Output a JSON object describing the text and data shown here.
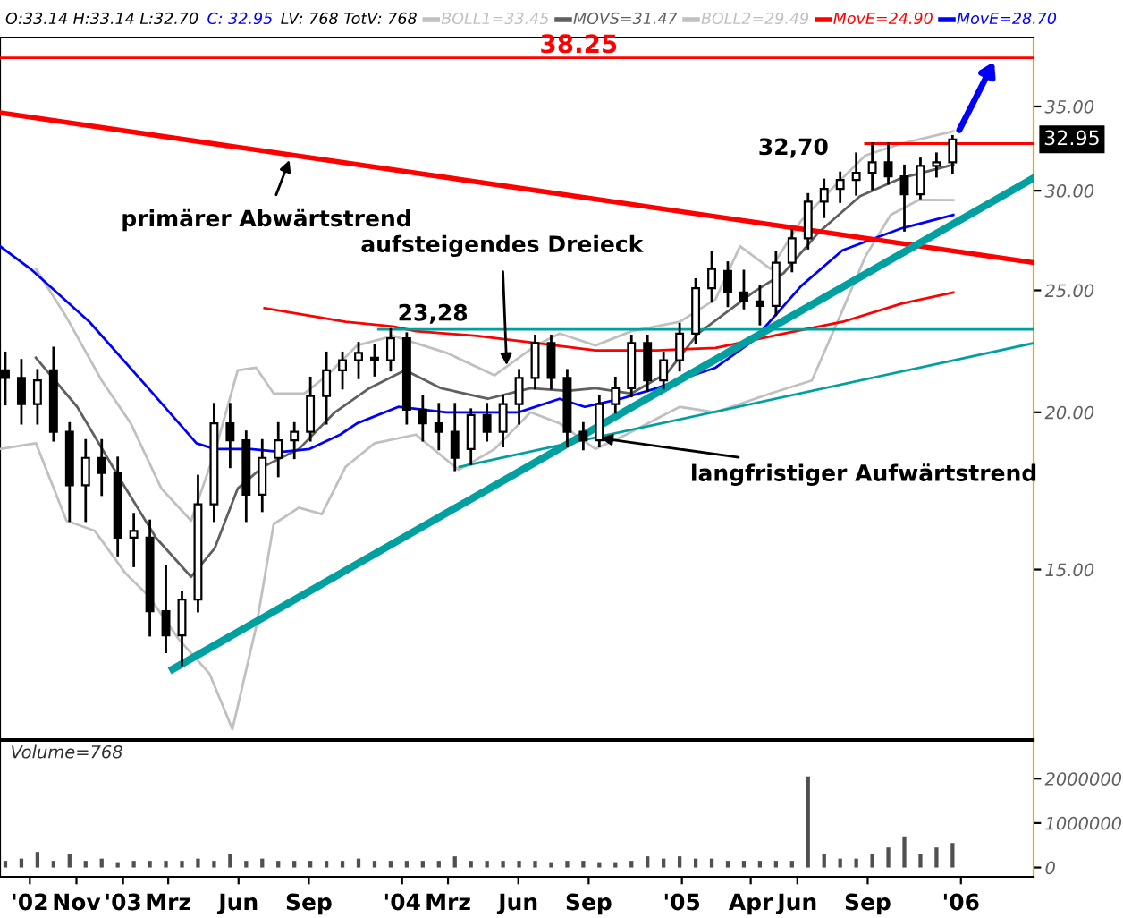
{
  "chart_data": [
    {
      "type": "candlestick",
      "x": [
        "2002-07-31",
        "2002-08-21",
        "2002-09-11",
        "2002-10-02",
        "2002-10-23",
        "2002-11-13",
        "2002-12-04",
        "2002-12-25",
        "2003-01-15",
        "2003-02-05",
        "2003-02-26",
        "2003-03-19",
        "2003-04-09",
        "2003-04-30",
        "2003-05-21",
        "2003-06-11",
        "2003-07-02",
        "2003-07-23",
        "2003-08-13",
        "2003-09-03",
        "2003-09-24",
        "2003-10-15",
        "2003-11-05",
        "2003-11-26",
        "2003-12-17",
        "2004-01-07",
        "2004-01-28",
        "2004-02-18",
        "2004-03-10",
        "2004-03-31",
        "2004-04-21",
        "2004-05-12",
        "2004-06-02",
        "2004-06-23",
        "2004-07-14",
        "2004-08-04",
        "2004-08-25",
        "2004-09-15",
        "2004-10-06",
        "2004-10-27",
        "2004-11-17",
        "2004-12-08",
        "2004-12-29",
        "2005-01-19",
        "2005-02-09",
        "2005-03-02",
        "2005-03-23",
        "2005-04-13",
        "2005-05-04",
        "2005-05-25",
        "2005-06-15",
        "2005-07-06",
        "2005-07-27",
        "2005-08-17",
        "2005-09-07",
        "2005-09-28",
        "2005-10-19",
        "2005-11-09",
        "2005-11-30",
        "2005-12-21"
      ],
      "ohlc": [
        [
          21.6,
          22.3,
          20.3,
          21.3
        ],
        [
          21.3,
          22.0,
          19.6,
          20.3
        ],
        [
          20.3,
          21.6,
          19.6,
          21.2
        ],
        [
          21.6,
          22.5,
          19.0,
          19.3
        ],
        [
          19.3,
          19.6,
          16.4,
          17.5
        ],
        [
          17.5,
          19.0,
          16.4,
          18.4
        ],
        [
          18.4,
          19.0,
          17.2,
          17.9
        ],
        [
          17.9,
          18.4,
          15.4,
          15.9
        ],
        [
          15.9,
          16.6,
          15.1,
          16.1
        ],
        [
          15.9,
          16.4,
          13.3,
          13.9
        ],
        [
          13.9,
          15.1,
          12.9,
          13.3
        ],
        [
          13.3,
          14.4,
          12.6,
          14.2
        ],
        [
          14.2,
          17.8,
          13.9,
          16.9
        ],
        [
          16.9,
          20.3,
          16.4,
          19.6
        ],
        [
          19.6,
          20.3,
          18.1,
          19.0
        ],
        [
          19.0,
          19.3,
          16.4,
          17.2
        ],
        [
          17.2,
          19.0,
          16.7,
          18.4
        ],
        [
          18.4,
          19.6,
          17.8,
          19.0
        ],
        [
          19.0,
          19.6,
          18.4,
          19.3
        ],
        [
          19.3,
          21.3,
          19.0,
          20.6
        ],
        [
          20.6,
          22.3,
          19.6,
          21.6
        ],
        [
          21.6,
          22.3,
          20.9,
          22.0
        ],
        [
          22.0,
          22.7,
          21.3,
          22.3
        ],
        [
          22.1,
          22.6,
          21.4,
          22.0
        ],
        [
          22.0,
          23.28,
          21.6,
          22.9
        ],
        [
          22.9,
          23.1,
          19.6,
          20.1
        ],
        [
          20.1,
          20.6,
          19.0,
          19.6
        ],
        [
          19.6,
          20.3,
          18.7,
          19.3
        ],
        [
          19.3,
          20.3,
          18.0,
          18.4
        ],
        [
          18.7,
          20.1,
          18.2,
          19.9
        ],
        [
          19.9,
          20.3,
          19.0,
          19.3
        ],
        [
          19.3,
          20.6,
          18.8,
          20.3
        ],
        [
          20.3,
          21.6,
          19.6,
          21.3
        ],
        [
          21.3,
          23.0,
          20.9,
          22.7
        ],
        [
          22.7,
          23.0,
          20.9,
          21.3
        ],
        [
          21.3,
          21.6,
          18.8,
          19.3
        ],
        [
          19.3,
          19.6,
          18.7,
          19.0
        ],
        [
          19.0,
          20.6,
          18.8,
          20.3
        ],
        [
          20.3,
          21.3,
          20.0,
          20.9
        ],
        [
          20.9,
          23.0,
          20.6,
          22.7
        ],
        [
          22.7,
          23.0,
          20.8,
          21.2
        ],
        [
          21.2,
          22.3,
          20.9,
          22.0
        ],
        [
          22.0,
          23.5,
          21.6,
          23.1
        ],
        [
          23.1,
          25.5,
          22.7,
          25.1
        ],
        [
          25.1,
          26.8,
          24.5,
          26.0
        ],
        [
          25.9,
          26.3,
          24.3,
          24.9
        ],
        [
          24.9,
          25.9,
          24.2,
          24.5
        ],
        [
          24.5,
          25.2,
          23.5,
          24.3
        ],
        [
          24.3,
          26.8,
          23.9,
          26.3
        ],
        [
          26.3,
          27.9,
          25.9,
          27.5
        ],
        [
          27.5,
          29.8,
          27.0,
          29.4
        ],
        [
          29.4,
          30.6,
          28.6,
          30.1
        ],
        [
          30.1,
          31.0,
          29.4,
          30.6
        ],
        [
          30.6,
          32.1,
          29.8,
          31.0
        ],
        [
          31.0,
          32.7,
          30.1,
          31.6
        ],
        [
          31.6,
          32.7,
          30.4,
          30.8
        ],
        [
          30.8,
          31.4,
          27.9,
          29.8
        ],
        [
          29.8,
          31.8,
          29.6,
          31.4
        ],
        [
          31.4,
          32.1,
          30.8,
          31.6
        ],
        [
          31.6,
          33.14,
          31.0,
          32.95
        ]
      ],
      "series": [
        {
          "name": "BOLL1=33.45",
          "type": "line",
          "color": "#c0c0c0",
          "x": [
            "2002-09-09",
            "2002-10-19",
            "2002-12-04",
            "2003-01-11",
            "2003-02-20",
            "2003-03-31",
            "2003-05-01",
            "2003-05-31",
            "2003-06-24",
            "2003-07-17",
            "2003-08-26",
            "2003-09-25",
            "2003-11-03",
            "2003-12-20",
            "2004-02-28",
            "2004-05-01",
            "2004-06-24",
            "2004-07-25",
            "2004-09-10",
            "2004-10-27",
            "2004-12-29",
            "2005-02-14",
            "2005-03-18",
            "2005-04-27",
            "2005-06-06",
            "2005-07-23",
            "2005-08-29",
            "2005-10-15",
            "2005-12-22"
          ],
          "values": [
            26.0,
            23.8,
            21.2,
            19.6,
            17.4,
            16.4,
            18.6,
            21.6,
            21.7,
            20.7,
            20.7,
            21.4,
            22.6,
            23.0,
            22.3,
            21.4,
            22.6,
            23.1,
            22.6,
            23.2,
            23.6,
            24.6,
            27.1,
            26.0,
            28.4,
            30.4,
            32.0,
            32.7,
            33.45
          ]
        },
        {
          "name": "MOVS=31.47",
          "type": "line",
          "color": "#606060",
          "x": [
            "2002-09-09",
            "2002-11-02",
            "2002-12-28",
            "2003-02-13",
            "2003-03-31",
            "2003-05-01",
            "2003-05-31",
            "2003-07-03",
            "2003-08-19",
            "2003-10-05",
            "2003-11-19",
            "2004-01-05",
            "2004-02-21",
            "2004-04-22",
            "2004-06-17",
            "2004-08-04",
            "2004-09-10",
            "2004-10-27",
            "2004-12-13",
            "2005-01-22",
            "2005-04-04",
            "2005-05-14",
            "2005-06-29",
            "2005-08-22",
            "2005-10-15",
            "2005-12-22"
          ],
          "values": [
            22.1,
            20.2,
            17.7,
            15.9,
            14.8,
            15.6,
            17.4,
            18.1,
            18.7,
            20.0,
            20.9,
            21.6,
            20.9,
            20.5,
            20.9,
            20.8,
            20.9,
            20.7,
            21.5,
            23.1,
            24.9,
            25.8,
            27.8,
            29.7,
            30.7,
            31.47
          ]
        },
        {
          "name": "BOLL2=29.49",
          "type": "line",
          "color": "#c0c0c0",
          "x": [
            "2002-07-24",
            "2002-09-09",
            "2002-10-19",
            "2002-11-25",
            "2003-01-04",
            "2003-02-03",
            "2003-03-15",
            "2003-04-24",
            "2003-05-24",
            "2003-06-24",
            "2003-07-17",
            "2003-08-19",
            "2003-09-18",
            "2003-10-19",
            "2003-11-26",
            "2004-01-19",
            "2004-03-15",
            "2004-05-01",
            "2004-06-17",
            "2004-07-25",
            "2004-09-10",
            "2004-10-20",
            "2004-12-29",
            "2005-02-14",
            "2005-04-27",
            "2005-06-20",
            "2005-07-30",
            "2005-08-29",
            "2005-10-01",
            "2005-11-07",
            "2005-12-22"
          ],
          "values": [
            18.7,
            18.9,
            16.4,
            16.1,
            14.9,
            14.3,
            13.2,
            12.4,
            11.2,
            13.5,
            16.3,
            16.8,
            16.6,
            18.1,
            18.9,
            19.2,
            18.0,
            18.7,
            20.0,
            19.6,
            18.7,
            19.2,
            20.2,
            20.0,
            20.7,
            21.2,
            24.1,
            26.6,
            28.7,
            29.5,
            29.49
          ]
        },
        {
          "name": "MovE=24.90",
          "type": "line",
          "color": "#ff0000",
          "x": [
            "2003-07-05",
            "2003-10-19",
            "2003-12-20",
            "2004-01-19",
            "2004-04-08",
            "2004-06-24",
            "2004-09-10",
            "2004-11-29",
            "2005-02-14",
            "2005-05-14",
            "2005-07-30",
            "2005-10-15",
            "2005-12-22"
          ],
          "values": [
            24.2,
            23.6,
            23.4,
            23.2,
            23.0,
            22.7,
            22.4,
            22.4,
            22.5,
            23.1,
            23.6,
            24.4,
            24.9
          ]
        },
        {
          "name": "MovE=28.70",
          "type": "line",
          "color": "#0000ff",
          "x": [
            "2002-07-24",
            "2002-09-02",
            "2002-11-18",
            "2003-02-03",
            "2003-04-07",
            "2003-05-01",
            "2003-06-17",
            "2003-07-26",
            "2003-09-02",
            "2003-10-12",
            "2003-11-03",
            "2003-12-27",
            "2004-02-28",
            "2004-06-01",
            "2004-07-25",
            "2004-08-27",
            "2004-10-13",
            "2004-11-29",
            "2005-01-15",
            "2005-02-14",
            "2005-04-04",
            "2005-06-06",
            "2005-07-30",
            "2005-10-15",
            "2005-12-22"
          ],
          "values": [
            27.1,
            26.0,
            23.6,
            20.9,
            18.9,
            18.7,
            18.7,
            18.6,
            18.7,
            19.2,
            19.6,
            20.2,
            20.0,
            20.0,
            20.5,
            20.2,
            20.5,
            20.9,
            21.4,
            21.7,
            22.8,
            25.2,
            26.9,
            28.0,
            28.7
          ]
        },
        {
          "type": "line",
          "color": "#ff0000",
          "x": [
            "2002-07-24",
            "2006-04-06"
          ],
          "values": [
            34.6,
            26.3
          ]
        },
        {
          "type": "line",
          "color": "#00a0a0",
          "x": [
            "2003-03-07",
            "2006-04-06"
          ],
          "values": [
            12.5,
            30.7
          ]
        },
        {
          "type": "line",
          "color": "#00a0a0",
          "x": [
            "2003-12-01",
            "2006-04-06"
          ],
          "values": [
            23.28,
            23.28
          ]
        },
        {
          "type": "line",
          "color": "#00a0a0",
          "x": [
            "2004-03-16",
            "2006-04-06"
          ],
          "values": [
            18.1,
            22.7
          ]
        },
        {
          "type": "line",
          "color": "#ff0000",
          "x": [
            "2005-08-29",
            "2006-04-06"
          ],
          "values": [
            32.7,
            32.7
          ]
        }
      ],
      "annotations": [
        "O:33.14 H:33.14 L:32.70",
        "C: 32.95",
        "LV: 768 TotV: 768",
        {
          "text": "primärer Abwärtstrend",
          "x": "2003-08-09",
          "y": 32.0
        },
        {
          "text": "aufsteigendes Dreieck",
          "x": "2004-05-17",
          "y": 21.6
        },
        {
          "text": "23,28",
          "x": "2003-12-17",
          "y": 23.28
        },
        {
          "text": "32,70",
          "x": "2005-08-29",
          "y": 32.7
        },
        {
          "text": "langfristiger Aufwärtstrend",
          "x": "2004-09-10",
          "y": 19.1
        },
        {
          "text": "32.95",
          "x": "2006-04-06",
          "y": 32.95
        }
      ],
      "ref_lines": [
        {
          "axis": "y",
          "value": 38.25,
          "label": "38.25",
          "color": "#ff0000"
        }
      ],
      "xlim": [
        "2002-07-24",
        "2006-04-06"
      ],
      "ylim": [
        11.0,
        39.7
      ],
      "log": true,
      "yticks": [
        {
          "value": 15,
          "label": "15.00"
        },
        {
          "value": 20,
          "label": "20.00"
        },
        {
          "value": 25,
          "label": "25.00"
        },
        {
          "value": 30,
          "label": "30.00"
        },
        {
          "value": 35,
          "label": "35.00"
        }
      ],
      "legend": "top",
      "tick_labels": "y"
    },
    {
      "type": "bar",
      "title": "Volume=768",
      "color": "#505050",
      "x": [
        "2002-07-31",
        "2002-08-21",
        "2002-09-11",
        "2002-10-02",
        "2002-10-23",
        "2002-11-13",
        "2002-12-04",
        "2002-12-25",
        "2003-01-15",
        "2003-02-05",
        "2003-02-26",
        "2003-03-19",
        "2003-04-09",
        "2003-04-30",
        "2003-05-21",
        "2003-06-11",
        "2003-07-02",
        "2003-07-23",
        "2003-08-13",
        "2003-09-03",
        "2003-09-24",
        "2003-10-15",
        "2003-11-05",
        "2003-11-26",
        "2003-12-17",
        "2004-01-07",
        "2004-01-28",
        "2004-02-18",
        "2004-03-10",
        "2004-03-31",
        "2004-04-21",
        "2004-05-12",
        "2004-06-02",
        "2004-06-23",
        "2004-07-14",
        "2004-08-04",
        "2004-08-25",
        "2004-09-15",
        "2004-10-06",
        "2004-10-27",
        "2004-11-17",
        "2004-12-08",
        "2004-12-29",
        "2005-01-19",
        "2005-02-09",
        "2005-03-02",
        "2005-03-23",
        "2005-04-13",
        "2005-05-04",
        "2005-05-25",
        "2005-06-15",
        "2005-07-06",
        "2005-07-27",
        "2005-08-17",
        "2005-09-07",
        "2005-09-28",
        "2005-10-19",
        "2005-11-09",
        "2005-11-30",
        "2005-12-21"
      ],
      "values": [
        150000,
        200000,
        350000,
        150000,
        300000,
        150000,
        200000,
        120000,
        150000,
        150000,
        150000,
        150000,
        200000,
        150000,
        300000,
        150000,
        200000,
        150000,
        150000,
        150000,
        150000,
        150000,
        200000,
        150000,
        150000,
        150000,
        150000,
        150000,
        250000,
        150000,
        150000,
        150000,
        150000,
        150000,
        120000,
        150000,
        150000,
        120000,
        120000,
        150000,
        250000,
        200000,
        250000,
        200000,
        200000,
        150000,
        150000,
        150000,
        150000,
        150000,
        2050000,
        300000,
        200000,
        200000,
        300000,
        450000,
        700000,
        300000,
        450000,
        550000
      ],
      "xlim": [
        "2002-07-24",
        "2006-04-06"
      ],
      "ylim": [
        -210000,
        2850000
      ],
      "xticks": [
        {
          "value": "2002-09-01",
          "label": "'02"
        },
        {
          "value": "2002-11-01",
          "label": "Nov"
        },
        {
          "value": "2003-01-01",
          "label": "'03"
        },
        {
          "value": "2003-03-01",
          "label": "Mrz"
        },
        {
          "value": "2003-06-01",
          "label": "Jun"
        },
        {
          "value": "2003-09-01",
          "label": "Sep"
        },
        {
          "value": "2004-01-01",
          "label": "'04"
        },
        {
          "value": "2004-03-01",
          "label": "Mrz"
        },
        {
          "value": "2004-06-01",
          "label": "Jun"
        },
        {
          "value": "2004-09-01",
          "label": "Sep"
        },
        {
          "value": "2005-01-01",
          "label": "'05"
        },
        {
          "value": "2005-04-01",
          "label": "Apr"
        },
        {
          "value": "2005-06-01",
          "label": "Jun"
        },
        {
          "value": "2005-09-01",
          "label": "Sep"
        },
        {
          "value": "2006-01-01",
          "label": "'06"
        }
      ],
      "yticks": [
        0,
        1000000,
        2000000
      ]
    }
  ]
}
